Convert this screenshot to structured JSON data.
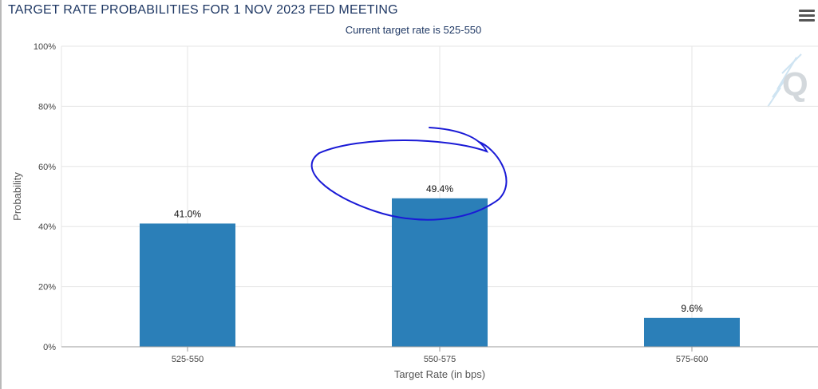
{
  "chart_data": {
    "type": "bar",
    "title": "TARGET RATE PROBABILITIES FOR 1 NOV 2023 FED MEETING",
    "subtitle": "Current target rate is 525-550",
    "categories": [
      "525-550",
      "550-575",
      "575-600"
    ],
    "values": [
      41.0,
      49.4,
      9.6
    ],
    "data_labels": [
      "41.0%",
      "49.4%",
      "9.6%"
    ],
    "xlabel": "Target Rate (in bps)",
    "ylabel": "Probability",
    "ylim": [
      0,
      100
    ],
    "yticks": [
      0,
      20,
      40,
      60,
      80,
      100
    ],
    "ytick_labels": [
      "0%",
      "20%",
      "40%",
      "60%",
      "80%",
      "100%"
    ],
    "grid": true,
    "legend": "none",
    "bar_color": "#2b7fb8",
    "annotation": "hand-drawn blue circle around the 550-575 bar label",
    "annotation_color": "#1a1ad6"
  },
  "menu": {
    "icon": "hamburger-menu-icon"
  },
  "logo": {
    "icon": "q-logo-icon"
  }
}
